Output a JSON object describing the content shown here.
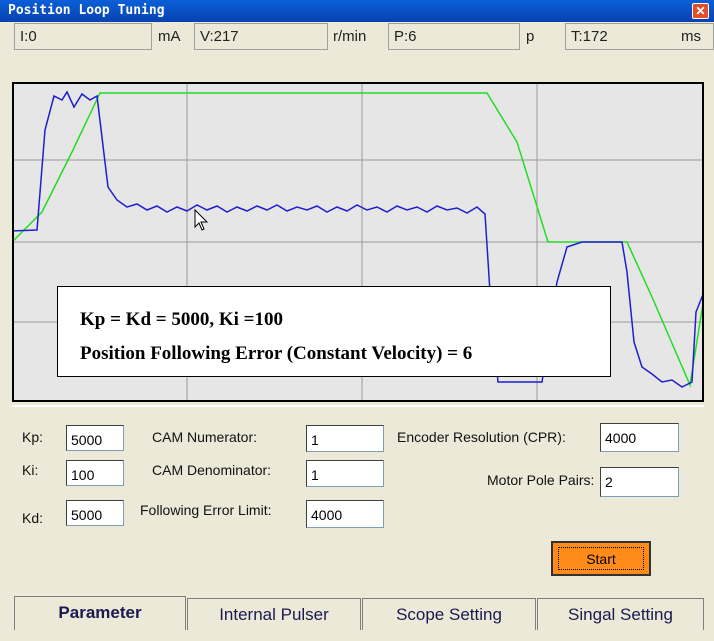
{
  "window": {
    "title": "Position Loop Tuning",
    "close": "✕"
  },
  "status": [
    {
      "value": "I:0",
      "unit": "mA"
    },
    {
      "value": "V:217",
      "unit": "r/min"
    },
    {
      "value": "P:6",
      "unit": "p"
    },
    {
      "value": "T:172",
      "unit": "ms"
    }
  ],
  "annotation": [
    "Kp = Kd = 5000, Ki =100",
    "Position Following Error (Constant Velocity) = 6"
  ],
  "parameters": {
    "kp": {
      "label": "Kp:",
      "value": "5000"
    },
    "ki": {
      "label": "Ki:",
      "value": "100"
    },
    "kd": {
      "label": "Kd:",
      "value": "5000"
    },
    "cam_numerator": {
      "label": "CAM Numerator:",
      "value": "1"
    },
    "cam_denominator": {
      "label": "CAM Denominator:",
      "value": "1"
    },
    "following_error_limit": {
      "label": "Following Error Limit:",
      "value": "4000"
    },
    "encoder_resolution": {
      "label": "Encoder Resolution (CPR):",
      "value": "4000"
    },
    "motor_pole_pairs": {
      "label": "Motor Pole Pairs:",
      "value": "2"
    },
    "start": "Start"
  },
  "tabs": [
    "Parameter",
    "Internal Pulser",
    "Scope Setting",
    "Singal Setting"
  ]
}
